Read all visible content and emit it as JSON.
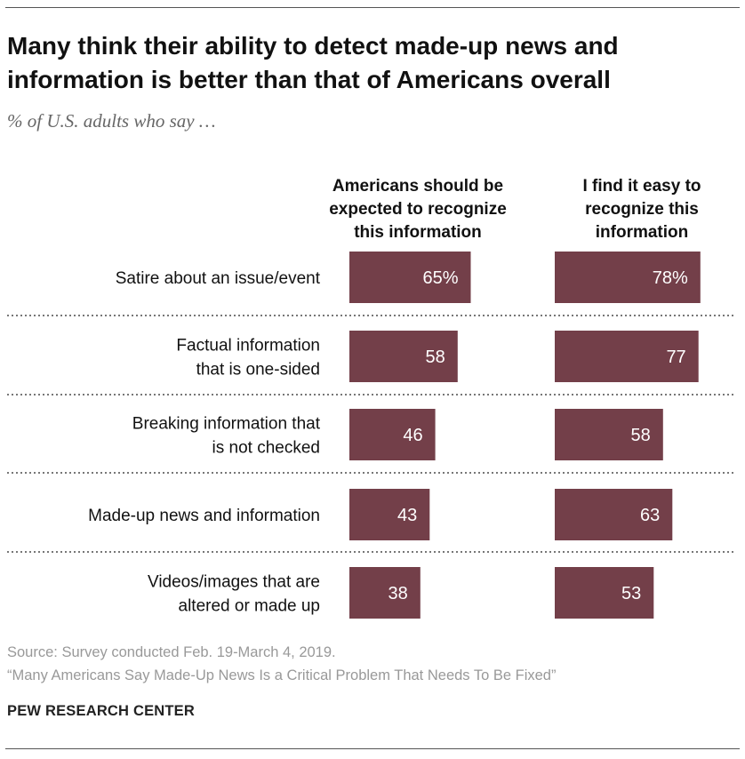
{
  "header": {
    "title_line1": "Many think their ability to detect made-up news and",
    "title_line2": "information is better than that of Americans overall",
    "subtitle": "% of U.S. adults who say …"
  },
  "chart_data": {
    "type": "bar",
    "orientation": "horizontal",
    "bar_color": "#733f49",
    "label_color": "#ffffff",
    "categories": [
      [
        "Satire about an issue/event"
      ],
      [
        "Factual information",
        "that is one-sided"
      ],
      [
        "Breaking information that",
        "is not checked"
      ],
      [
        "Made-up news and information"
      ],
      [
        "Videos/images that are",
        "altered or made up"
      ]
    ],
    "series": [
      {
        "name": [
          "Americans should be",
          "expected to recognize",
          "this information"
        ],
        "values": [
          65,
          58,
          46,
          43,
          38
        ],
        "labels": [
          "65%",
          "58",
          "46",
          "43",
          "38"
        ]
      },
      {
        "name": [
          "I find it easy to",
          "recognize this",
          "information"
        ],
        "values": [
          78,
          77,
          58,
          63,
          53
        ],
        "labels": [
          "78%",
          "77",
          "58",
          "63",
          "53"
        ]
      }
    ],
    "xlim": [
      0,
      100
    ],
    "row_separators": "dotted"
  },
  "footer": {
    "source": "Source: Survey conducted Feb. 19-March 4, 2019.",
    "report": "“Many Americans Say Made-Up News Is a Critical Problem That Needs To Be Fixed”",
    "brand": "PEW RESEARCH CENTER"
  }
}
